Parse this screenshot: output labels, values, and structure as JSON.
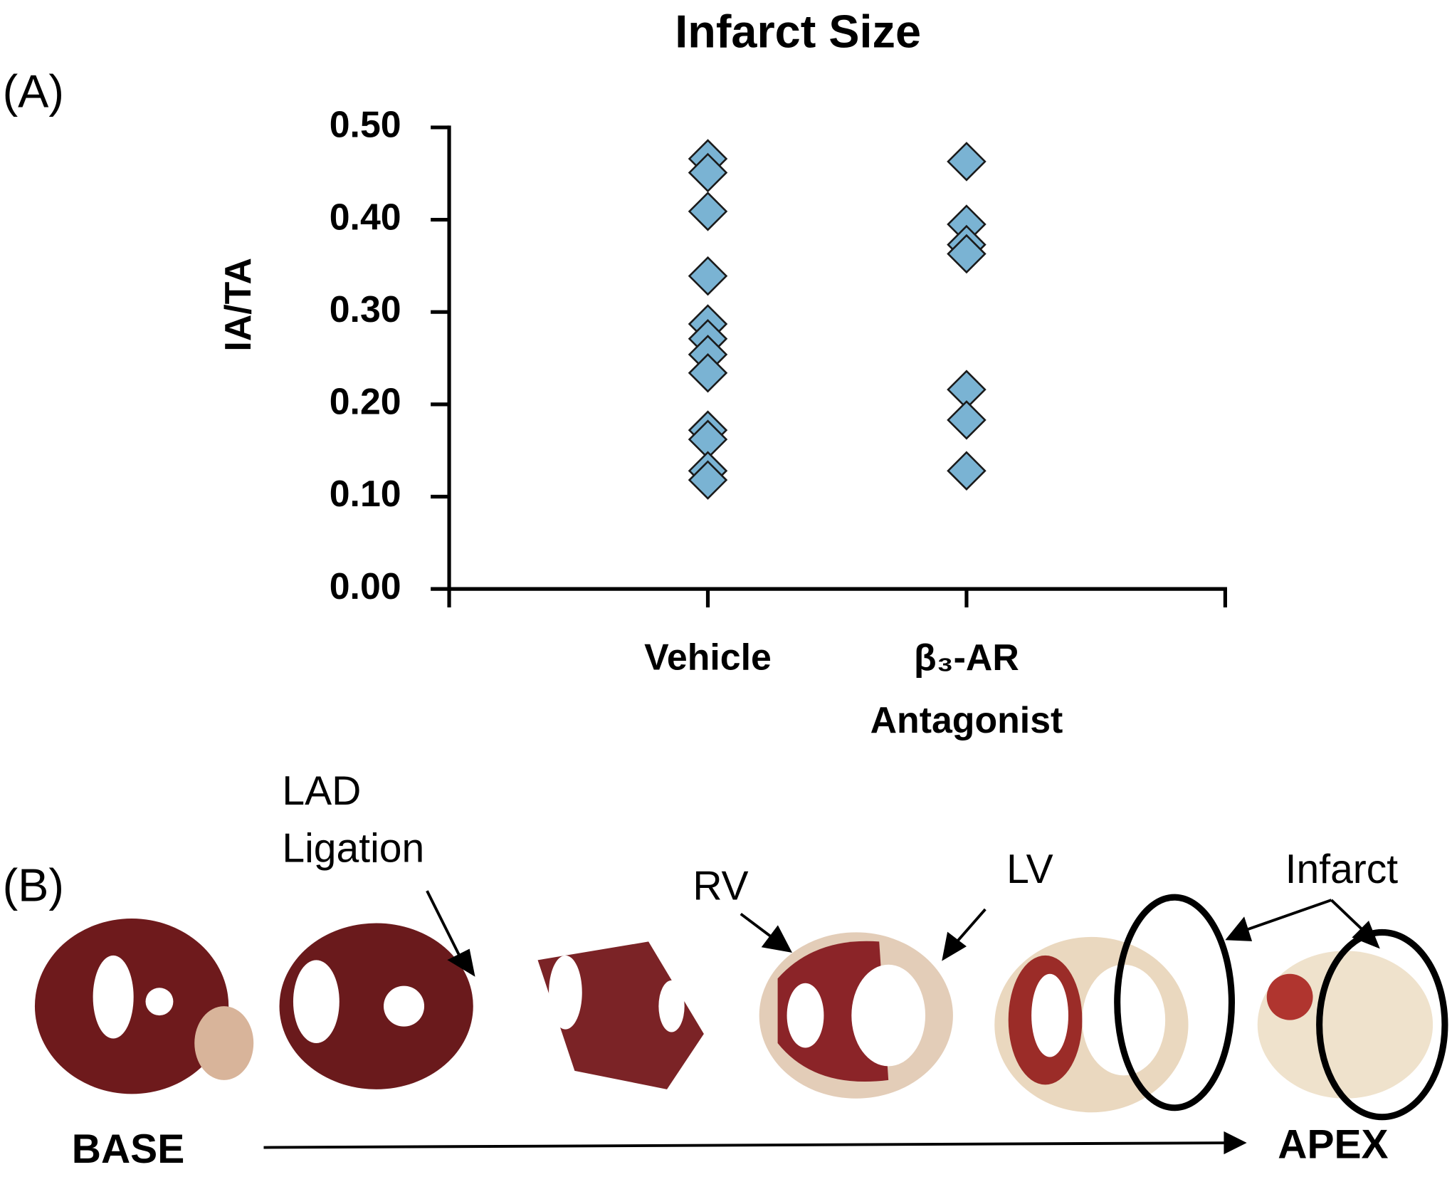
{
  "chart_data": {
    "type": "strip",
    "panel_label": "(A)",
    "title": "Infarct Size",
    "y_label": "IA/TA",
    "categories": [
      "Vehicle",
      "β₃-AR Antagonist"
    ],
    "values": [
      [
        0.466,
        0.451,
        0.409,
        0.339,
        0.287,
        0.271,
        0.254,
        0.234,
        0.172,
        0.162,
        0.128,
        0.118
      ],
      [
        0.463,
        0.395,
        0.373,
        0.363,
        0.216,
        0.183,
        0.128
      ]
    ],
    "color": "#7ab3d3",
    "ylim": [
      0,
      0.5
    ],
    "yticks": [
      {
        "value": 0,
        "label": "0.00"
      },
      {
        "value": 0.1,
        "label": "0.10"
      },
      {
        "value": 0.2,
        "label": "0.20"
      },
      {
        "value": 0.3,
        "label": "0.30"
      },
      {
        "value": 0.4,
        "label": "0.40"
      },
      {
        "value": 0.5,
        "label": "0.50"
      }
    ]
  },
  "panel_b": {
    "panel_label": "(B)",
    "lad_ligation": [
      "LAD",
      "Ligation"
    ],
    "rv": "RV",
    "lv": "LV",
    "infarct": "Infarct",
    "base": "BASE",
    "apex": "APEX"
  }
}
